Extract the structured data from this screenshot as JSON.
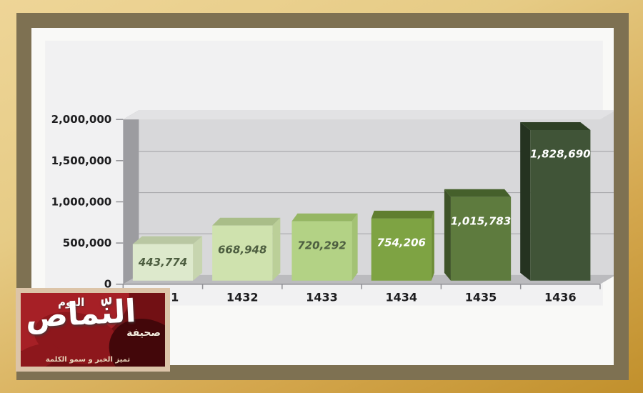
{
  "page": {
    "background_gold": "#c1902c",
    "frame_color": "#7e7152",
    "panel_color": "#f9f9f7"
  },
  "chart_data": {
    "type": "bar",
    "projection": "3d",
    "title": "",
    "xlabel": "",
    "ylabel": "",
    "categories": [
      "1431",
      "1432",
      "1433",
      "1434",
      "1435",
      "1436"
    ],
    "values": [
      443774,
      668948,
      720292,
      754206,
      1015783,
      1828690
    ],
    "value_labels": [
      "443,774",
      "668,948",
      "720,292",
      "754,206",
      "1,015,783",
      "1,828,690"
    ],
    "ylim": [
      0,
      2000000
    ],
    "yticks": [
      0,
      500000,
      1000000,
      1500000,
      2000000
    ],
    "ytick_labels": [
      "0",
      "500,000",
      "1,000,000",
      "1,500,000",
      "2,000,000"
    ],
    "grid": true,
    "legend": "none",
    "colors": {
      "bar_front": [
        "#dde9cc",
        "#cfe2ae",
        "#b3d285",
        "#7ea343",
        "#5e7b3e",
        "#405437"
      ],
      "bar_top": [
        "#b9c7a2",
        "#a9bd88",
        "#95b663",
        "#607e2f",
        "#45602b",
        "#2e4025"
      ],
      "bar_side": [
        "#c7d5af",
        "#bbcf98",
        "#a3c274",
        "#6e8e37",
        "#3e5328",
        "#253320"
      ],
      "value_label": [
        "#4d5e40",
        "#4d5e40",
        "#4d5e40",
        "#ffffff",
        "#ffffff",
        "#ffffff"
      ],
      "plot_bg": "#f1f1f2",
      "back_wall": "#d8d8da",
      "wall_top": "#e2e2e4",
      "left_wall": "#9c9ca0",
      "floor": "#bbbbbe",
      "gridline": "#a9a9ad",
      "axis_line": "#909094",
      "axis_text": "#1d1d1f"
    }
  },
  "logo": {
    "name_main": "النّماص",
    "name_top": "اليوم",
    "name_side": "صحيفة",
    "tagline": "تميز الخبر و سمو الكلمة",
    "bg_color": "#721014",
    "accent_color": "#a62026",
    "border_color": "#dcc4a8"
  }
}
